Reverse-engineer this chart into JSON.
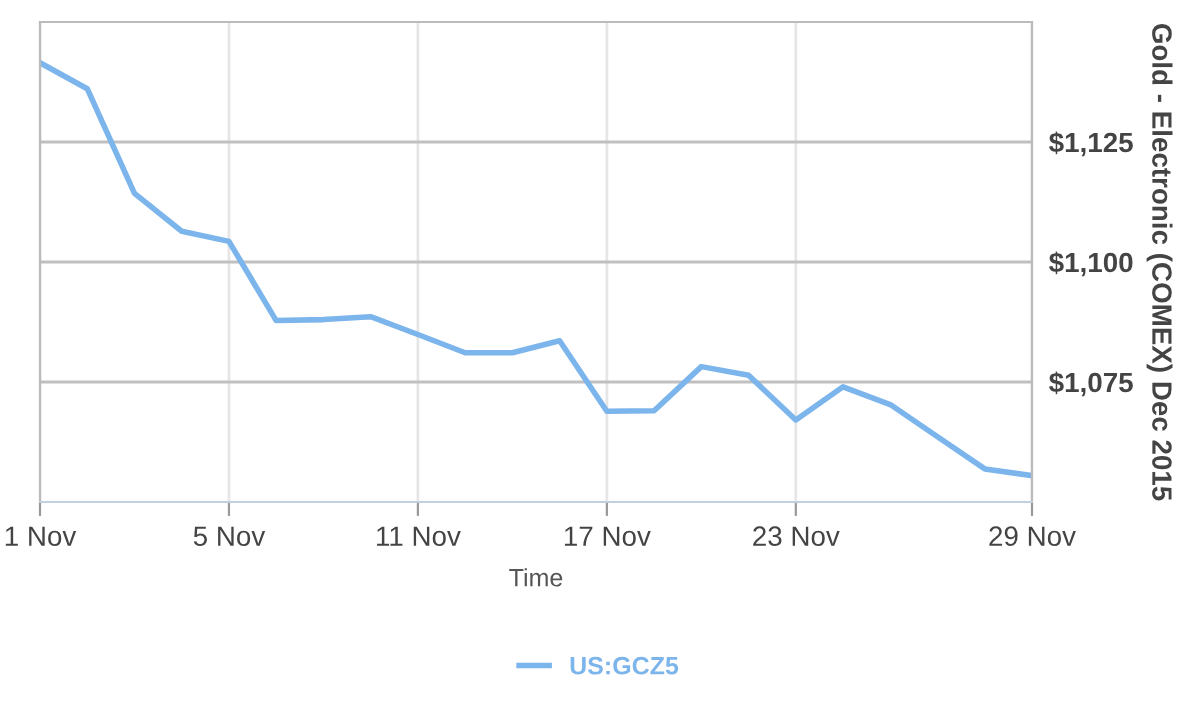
{
  "chart_data": {
    "type": "line",
    "xlabel": "Time",
    "ylabel": "Gold - Electronic (COMEX) Dec 2015",
    "categories": [
      "1 Nov",
      null,
      null,
      null,
      "5 Nov",
      null,
      null,
      null,
      "11 Nov",
      null,
      null,
      null,
      "17 Nov",
      null,
      null,
      null,
      "23 Nov",
      null,
      null,
      null,
      null,
      "29 Nov"
    ],
    "series": [
      {
        "name": "US:GCZ5",
        "color": "#7cb5ec",
        "values": [
          1141.5,
          1136.1,
          1114.3,
          1106.4,
          1104.3,
          1087.8,
          1088.0,
          1088.6,
          1084.9,
          1081.1,
          1081.1,
          1083.6,
          1068.9,
          1069.0,
          1078.2,
          1076.4,
          1067.1,
          1074.0,
          1070.3,
          1063.6,
          1056.9,
          1055.5
        ]
      }
    ],
    "ylim": [
      1050,
      1150
    ],
    "yticks": [
      {
        "value": 1075,
        "label": "$1,075"
      },
      {
        "value": 1100,
        "label": "$1,100"
      },
      {
        "value": 1125,
        "label": "$1,125"
      }
    ],
    "grid": true,
    "legend": "bottom",
    "marker": "none",
    "line_style": "solid"
  }
}
